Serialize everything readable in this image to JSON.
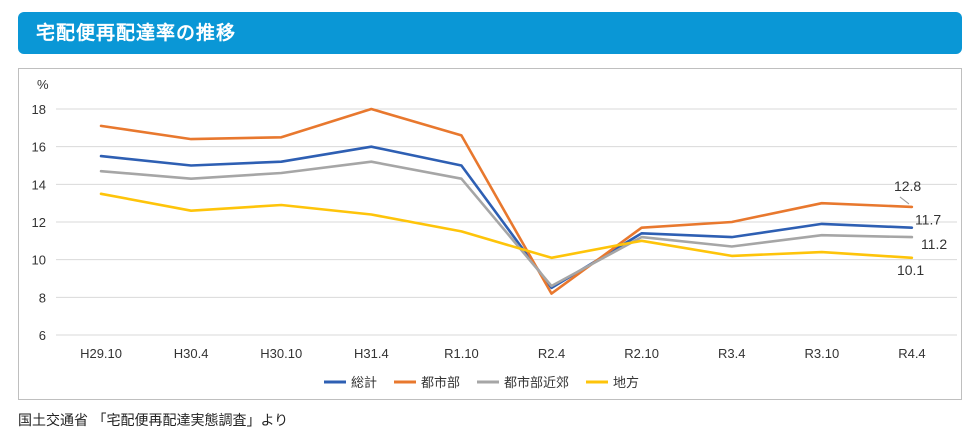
{
  "header": {
    "title": "宅配便再配達率の推移"
  },
  "source_note": "国土交通省 「宅配便再配達実態調査」より",
  "chart_data": {
    "type": "line",
    "title": "",
    "unit": "%",
    "categories": [
      "H29.10",
      "H30.4",
      "H30.10",
      "H31.4",
      "R1.10",
      "R2.4",
      "R2.10",
      "R3.4",
      "R3.10",
      "R4.4"
    ],
    "ylim": [
      6,
      18
    ],
    "yticks": [
      6,
      8,
      10,
      12,
      14,
      16,
      18
    ],
    "grid": true,
    "legend_position": "bottom",
    "series": [
      {
        "name": "総計",
        "color": "#2e5fb3",
        "values": [
          15.5,
          15.0,
          15.2,
          16.0,
          15.0,
          8.5,
          11.4,
          11.2,
          11.9,
          11.7
        ]
      },
      {
        "name": "都市部",
        "color": "#e8782e",
        "values": [
          17.1,
          16.4,
          16.5,
          18.0,
          16.6,
          8.2,
          11.7,
          12.0,
          13.0,
          12.8
        ]
      },
      {
        "name": "都市部近郊",
        "color": "#a6a6a6",
        "values": [
          14.7,
          14.3,
          14.6,
          15.2,
          14.3,
          8.6,
          11.2,
          10.7,
          11.3,
          11.2
        ]
      },
      {
        "name": "地方",
        "color": "#fec40a",
        "values": [
          13.5,
          12.6,
          12.9,
          12.4,
          11.5,
          10.1,
          11.0,
          10.2,
          10.4,
          10.1
        ]
      }
    ],
    "data_labels": [
      {
        "series": "都市部",
        "category": "R4.4",
        "text": "12.8"
      },
      {
        "series": "総計",
        "category": "R4.4",
        "text": "11.7"
      },
      {
        "series": "都市部近郊",
        "category": "R4.4",
        "text": "11.2"
      },
      {
        "series": "地方",
        "category": "R4.4",
        "text": "10.1"
      }
    ]
  }
}
